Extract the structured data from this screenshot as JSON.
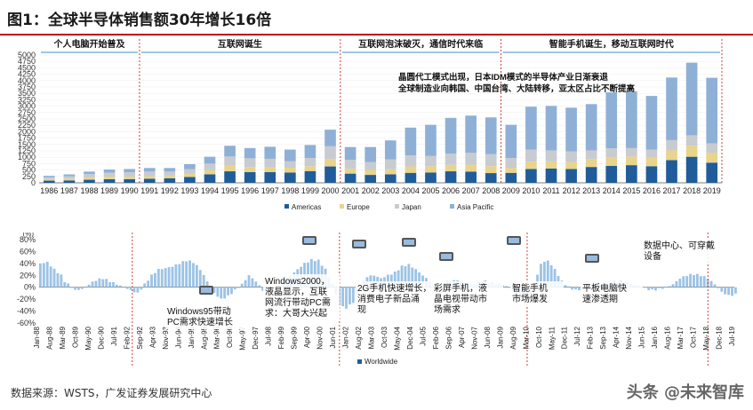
{
  "title": "图1：全球半导体销售额30年增长16倍",
  "source": "数据来源：WSTS，广发证券发展研究中心",
  "watermark": "头条 @未来智库",
  "eras": [
    {
      "label": "个人电脑开始普及"
    },
    {
      "label": "互联网诞生"
    },
    {
      "label": "互联网泡沫破灭，通信时代来临"
    },
    {
      "label": "智能手机诞生，移动互联网时代"
    }
  ],
  "annotation_top": [
    "晶圆代工模式出现，日本IDM模式的半导体产业日渐衰退",
    "全球制造业向韩国、中国台湾、大陆转移，亚太区占比不断提高"
  ],
  "bottom_annotations": [
    {
      "text": "Windows95带动PC需求快速增长"
    },
    {
      "text": "Windows2000，液晶显示，互联网流行带动PC需求：大哥大兴起"
    },
    {
      "text": "2G手机快速增长，消费电子新品涌现"
    },
    {
      "text": "彩屏手机，液晶电视带动市场需求"
    },
    {
      "text": "智能手机市场爆发"
    },
    {
      "text": "平板电脑快速渗透期"
    },
    {
      "text": "数据中心、可穿戴设备"
    }
  ],
  "colors": {
    "americas": "#1f5c99",
    "europe": "#e8d48a",
    "japan": "#c8cbd0",
    "asia": "#8fb0d6",
    "worldwide": "#9cc3e5",
    "divider": "#d04040",
    "era_arrow": "#3a8fc4"
  },
  "chart_data": [
    {
      "type": "bar",
      "stacked": true,
      "categories": [
        "1986",
        "1987",
        "1988",
        "1989",
        "1990",
        "1991",
        "1992",
        "1993",
        "1994",
        "1995",
        "1996",
        "1997",
        "1998",
        "1999",
        "2000",
        "2001",
        "2002",
        "2003",
        "2004",
        "2005",
        "2006",
        "2007",
        "2008",
        "2009",
        "2010",
        "2011",
        "2012",
        "2013",
        "2014",
        "2015",
        "2016",
        "2017",
        "2018",
        "2019"
      ],
      "ylim": [
        0,
        5000
      ],
      "yticks": [
        "0",
        "250",
        "500",
        "750",
        "1000",
        "1250",
        "1500",
        "1750",
        "2000",
        "2250",
        "2500",
        "2750",
        "3000",
        "3250",
        "3500",
        "3750",
        "4000",
        "4250",
        "4500",
        "4750",
        "5000"
      ],
      "series": [
        {
          "name": "Americas",
          "values": [
            85,
            95,
            120,
            140,
            145,
            160,
            180,
            230,
            330,
            450,
            420,
            420,
            400,
            460,
            640,
            360,
            310,
            330,
            390,
            400,
            450,
            440,
            380,
            390,
            540,
            560,
            540,
            620,
            660,
            690,
            650,
            890,
            1020,
            790
          ]
        },
        {
          "name": "Europe",
          "values": [
            60,
            70,
            90,
            100,
            100,
            100,
            100,
            120,
            160,
            220,
            200,
            190,
            190,
            190,
            290,
            200,
            180,
            200,
            250,
            250,
            250,
            270,
            270,
            200,
            290,
            280,
            270,
            310,
            340,
            340,
            330,
            380,
            430,
            390
          ]
        },
        {
          "name": "Japan",
          "values": [
            70,
            90,
            130,
            160,
            170,
            180,
            160,
            180,
            260,
            360,
            340,
            330,
            260,
            320,
            500,
            340,
            320,
            390,
            430,
            400,
            440,
            470,
            470,
            380,
            470,
            430,
            420,
            340,
            350,
            330,
            320,
            400,
            410,
            360
          ]
        },
        {
          "name": "Asia Pacific",
          "values": [
            60,
            75,
            100,
            120,
            125,
            140,
            140,
            200,
            270,
            420,
            400,
            470,
            450,
            510,
            650,
            500,
            590,
            740,
            1090,
            1220,
            1400,
            1450,
            1440,
            1300,
            1680,
            1740,
            1710,
            1810,
            2190,
            2220,
            2100,
            2450,
            2840,
            2570
          ]
        }
      ]
    },
    {
      "type": "bar",
      "series": [
        {
          "name": "Worldwide"
        }
      ],
      "yticks": [
        "-60%",
        "-40%",
        "-20%",
        "0%",
        "20%",
        "40%",
        "60%",
        "80%"
      ],
      "ylim": [
        -60,
        80
      ],
      "unit": "(%)",
      "x_labels": [
        "Jan-88",
        "Aug-88",
        "Mar-89",
        "Oct-89",
        "May-90",
        "Dec-90",
        "Jul-91",
        "Feb-92",
        "Sep-92",
        "Apr-93",
        "Nov-93",
        "Jun-94",
        "Jan-95",
        "Aug-95",
        "Mar-96",
        "Oct-96",
        "May-97",
        "Dec-97",
        "Jul-98",
        "Feb-99",
        "Sep-99",
        "Apr-00",
        "Nov-00",
        "Jun-01",
        "Jan-02",
        "Aug-02",
        "Mar-03",
        "Oct-03",
        "May-04",
        "Dec-04",
        "Jul-05",
        "Feb-06",
        "Sep-06",
        "Apr-07",
        "Nov-07",
        "Jun-08",
        "Jan-09",
        "Aug-09",
        "Mar-10",
        "Oct-10",
        "May-11",
        "Dec-11",
        "Jul-12",
        "Feb-13",
        "Sep-13",
        "Apr-14",
        "Nov-14",
        "Jun-15",
        "Jan-16",
        "Aug-16",
        "Mar-17",
        "Oct-17",
        "May-18",
        "Dec-18",
        "Jul-19"
      ],
      "anchors": [
        [
          0,
          40
        ],
        [
          4,
          42
        ],
        [
          8,
          30
        ],
        [
          12,
          20
        ],
        [
          14,
          10
        ],
        [
          18,
          0
        ],
        [
          20,
          -5
        ],
        [
          24,
          -3
        ],
        [
          28,
          5
        ],
        [
          32,
          12
        ],
        [
          36,
          15
        ],
        [
          40,
          10
        ],
        [
          44,
          5
        ],
        [
          48,
          0
        ],
        [
          52,
          -5
        ],
        [
          56,
          -10
        ],
        [
          60,
          5
        ],
        [
          64,
          20
        ],
        [
          68,
          30
        ],
        [
          72,
          32
        ],
        [
          76,
          35
        ],
        [
          80,
          40
        ],
        [
          84,
          45
        ],
        [
          88,
          42
        ],
        [
          92,
          30
        ],
        [
          96,
          10
        ],
        [
          100,
          -10
        ],
        [
          104,
          -20
        ],
        [
          108,
          -15
        ],
        [
          112,
          -5
        ],
        [
          116,
          5
        ],
        [
          120,
          20
        ],
        [
          124,
          10
        ],
        [
          128,
          -5
        ],
        [
          132,
          -15
        ],
        [
          136,
          -10
        ],
        [
          140,
          10
        ],
        [
          144,
          20
        ],
        [
          148,
          30
        ],
        [
          152,
          40
        ],
        [
          156,
          46
        ],
        [
          160,
          45
        ],
        [
          164,
          30
        ],
        [
          168,
          5
        ],
        [
          172,
          -30
        ],
        [
          176,
          -35
        ],
        [
          180,
          -25
        ],
        [
          184,
          0
        ],
        [
          188,
          18
        ],
        [
          192,
          20
        ],
        [
          196,
          15
        ],
        [
          200,
          20
        ],
        [
          204,
          25
        ],
        [
          208,
          35
        ],
        [
          212,
          38
        ],
        [
          216,
          30
        ],
        [
          220,
          20
        ],
        [
          224,
          10
        ],
        [
          228,
          0
        ],
        [
          232,
          8
        ],
        [
          236,
          10
        ],
        [
          240,
          12
        ],
        [
          244,
          8
        ],
        [
          248,
          5
        ],
        [
          252,
          8
        ],
        [
          256,
          10
        ],
        [
          260,
          7
        ],
        [
          264,
          5
        ],
        [
          268,
          2
        ],
        [
          272,
          -5
        ],
        [
          276,
          -20
        ],
        [
          280,
          -25
        ],
        [
          284,
          0
        ],
        [
          288,
          40
        ],
        [
          292,
          45
        ],
        [
          296,
          30
        ],
        [
          300,
          10
        ],
        [
          304,
          0
        ],
        [
          308,
          -5
        ],
        [
          312,
          -3
        ],
        [
          316,
          0
        ],
        [
          320,
          3
        ],
        [
          324,
          5
        ],
        [
          328,
          8
        ],
        [
          332,
          10
        ],
        [
          336,
          9
        ],
        [
          340,
          6
        ],
        [
          344,
          2
        ],
        [
          348,
          -2
        ],
        [
          352,
          -5
        ],
        [
          356,
          -3
        ],
        [
          360,
          0
        ],
        [
          364,
          5
        ],
        [
          368,
          15
        ],
        [
          372,
          20
        ],
        [
          376,
          22
        ],
        [
          380,
          20
        ],
        [
          384,
          15
        ],
        [
          388,
          5
        ],
        [
          392,
          -8
        ],
        [
          396,
          -14
        ],
        [
          400,
          -12
        ]
      ]
    }
  ]
}
